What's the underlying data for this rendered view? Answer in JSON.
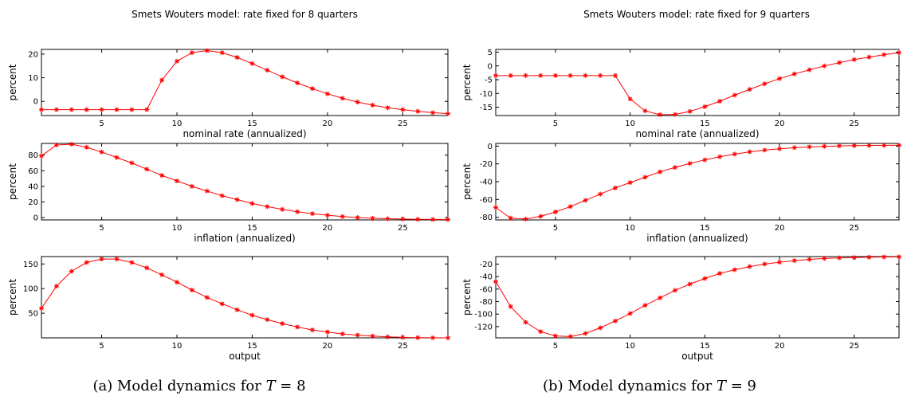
{
  "figures": [
    {
      "suptitle": "Smets Wouters model: rate fixed for 8 quarters",
      "caption": {
        "prefix": "(a) Model dynamics for ",
        "variable": "T",
        "suffix": " = 8"
      }
    },
    {
      "suptitle": "Smets Wouters model: rate fixed for 9 quarters",
      "caption": {
        "prefix": "(b) Model dynamics for ",
        "variable": "T",
        "suffix": " = 9"
      }
    }
  ],
  "chart_data": [
    {
      "type": "line",
      "xlabel": "nominal rate (annualized)",
      "ylabel": "percent",
      "xlim": [
        1,
        28
      ],
      "ylim": [
        -6,
        22
      ],
      "xticks": [
        5,
        10,
        15,
        20,
        25
      ],
      "yticks": [
        0,
        10,
        20
      ],
      "color": "#ff0000",
      "marker": "*",
      "x": [
        1,
        2,
        3,
        4,
        5,
        6,
        7,
        8,
        9,
        10,
        11,
        12,
        13,
        14,
        15,
        16,
        17,
        18,
        19,
        20,
        21,
        22,
        23,
        24,
        25,
        26,
        27,
        28
      ],
      "series": [
        {
          "values": [
            -3.5,
            -3.5,
            -3.5,
            -3.5,
            -3.5,
            -3.5,
            -3.5,
            -3.5,
            9,
            17,
            20.6,
            21.5,
            20.6,
            18.6,
            16,
            13.2,
            10.4,
            7.8,
            5.4,
            3.2,
            1.3,
            -0.3,
            -1.6,
            -2.7,
            -3.5,
            -4.2,
            -4.8,
            -5.2
          ]
        }
      ]
    },
    {
      "type": "line",
      "xlabel": "inflation (annualized)",
      "ylabel": "percent",
      "xlim": [
        1,
        28
      ],
      "ylim": [
        -3,
        95
      ],
      "xticks": [
        5,
        10,
        15,
        20,
        25
      ],
      "yticks": [
        0,
        20,
        40,
        60,
        80
      ],
      "color": "#ff0000",
      "marker": "*",
      "x": [
        1,
        2,
        3,
        4,
        5,
        6,
        7,
        8,
        9,
        10,
        11,
        12,
        13,
        14,
        15,
        16,
        17,
        18,
        19,
        20,
        21,
        22,
        23,
        24,
        25,
        26,
        27,
        28
      ],
      "series": [
        {
          "values": [
            79,
            93,
            94,
            90,
            84,
            77,
            70,
            62,
            54,
            47,
            40,
            34,
            28,
            23,
            18,
            14,
            10.5,
            7.5,
            5,
            3,
            1.3,
            0,
            -0.9,
            -1.5,
            -1.9,
            -2.2,
            -2.4,
            -2.5
          ]
        }
      ]
    },
    {
      "type": "line",
      "xlabel": "output",
      "ylabel": "percent",
      "xlim": [
        1,
        28
      ],
      "ylim": [
        0,
        165
      ],
      "xticks": [
        5,
        10,
        15,
        20,
        25
      ],
      "yticks": [
        50,
        100,
        150
      ],
      "color": "#ff0000",
      "marker": "*",
      "x": [
        1,
        2,
        3,
        4,
        5,
        6,
        7,
        8,
        9,
        10,
        11,
        12,
        13,
        14,
        15,
        16,
        17,
        18,
        19,
        20,
        21,
        22,
        23,
        24,
        25,
        26,
        27,
        28
      ],
      "series": [
        {
          "values": [
            60,
            105,
            135,
            153,
            160,
            160,
            153,
            142,
            128,
            113,
            97,
            82,
            69,
            57,
            46,
            37,
            29,
            22,
            16,
            12,
            8,
            5.5,
            3.5,
            2,
            1,
            0.5,
            0.2,
            0
          ]
        }
      ]
    },
    {
      "type": "line",
      "xlabel": "nominal rate (annualized)",
      "ylabel": "percent",
      "xlim": [
        1,
        28
      ],
      "ylim": [
        -18,
        6
      ],
      "xticks": [
        5,
        10,
        15,
        20,
        25
      ],
      "yticks": [
        -15,
        -10,
        -5,
        0,
        5
      ],
      "color": "#ff0000",
      "marker": "*",
      "x": [
        1,
        2,
        3,
        4,
        5,
        6,
        7,
        8,
        9,
        10,
        11,
        12,
        13,
        14,
        15,
        16,
        17,
        18,
        19,
        20,
        21,
        22,
        23,
        24,
        25,
        26,
        27,
        28
      ],
      "series": [
        {
          "values": [
            -3.5,
            -3.5,
            -3.5,
            -3.5,
            -3.5,
            -3.5,
            -3.5,
            -3.5,
            -3.5,
            -12,
            -16.3,
            -17.7,
            -17.6,
            -16.5,
            -14.8,
            -12.8,
            -10.6,
            -8.5,
            -6.5,
            -4.6,
            -2.9,
            -1.4,
            0,
            1.2,
            2.3,
            3.2,
            4.1,
            4.8
          ]
        }
      ]
    },
    {
      "type": "line",
      "xlabel": "inflation (annualized)",
      "ylabel": "percent",
      "xlim": [
        1,
        28
      ],
      "ylim": [
        -83,
        3
      ],
      "xticks": [
        5,
        10,
        15,
        20,
        25
      ],
      "yticks": [
        -80,
        -60,
        -40,
        -20,
        0
      ],
      "color": "#ff0000",
      "marker": "*",
      "x": [
        1,
        2,
        3,
        4,
        5,
        6,
        7,
        8,
        9,
        10,
        11,
        12,
        13,
        14,
        15,
        16,
        17,
        18,
        19,
        20,
        21,
        22,
        23,
        24,
        25,
        26,
        27,
        28
      ],
      "series": [
        {
          "values": [
            -69,
            -81,
            -82,
            -79,
            -74,
            -68,
            -61,
            -54,
            -47,
            -41,
            -35,
            -29,
            -24,
            -19.5,
            -15.5,
            -12,
            -9,
            -6.5,
            -4.5,
            -3,
            -1.8,
            -0.9,
            -0.3,
            0.2,
            0.5,
            0.7,
            0.8,
            0.9
          ]
        }
      ]
    },
    {
      "type": "line",
      "xlabel": "output",
      "ylabel": "percent",
      "xlim": [
        1,
        28
      ],
      "ylim": [
        -138,
        -8
      ],
      "xticks": [
        5,
        10,
        15,
        20,
        25
      ],
      "yticks": [
        -120,
        -100,
        -80,
        -60,
        -40,
        -20
      ],
      "color": "#ff0000",
      "marker": "*",
      "x": [
        1,
        2,
        3,
        4,
        5,
        6,
        7,
        8,
        9,
        10,
        11,
        12,
        13,
        14,
        15,
        16,
        17,
        18,
        19,
        20,
        21,
        22,
        23,
        24,
        25,
        26,
        27,
        28
      ],
      "series": [
        {
          "values": [
            -48,
            -88,
            -113,
            -128,
            -135,
            -136,
            -131,
            -122,
            -111,
            -99,
            -86,
            -74,
            -62,
            -52,
            -43,
            -35,
            -29,
            -24,
            -20,
            -17,
            -14.5,
            -12.5,
            -11,
            -10,
            -9.5,
            -9,
            -8.7,
            -8.5
          ]
        }
      ]
    }
  ]
}
